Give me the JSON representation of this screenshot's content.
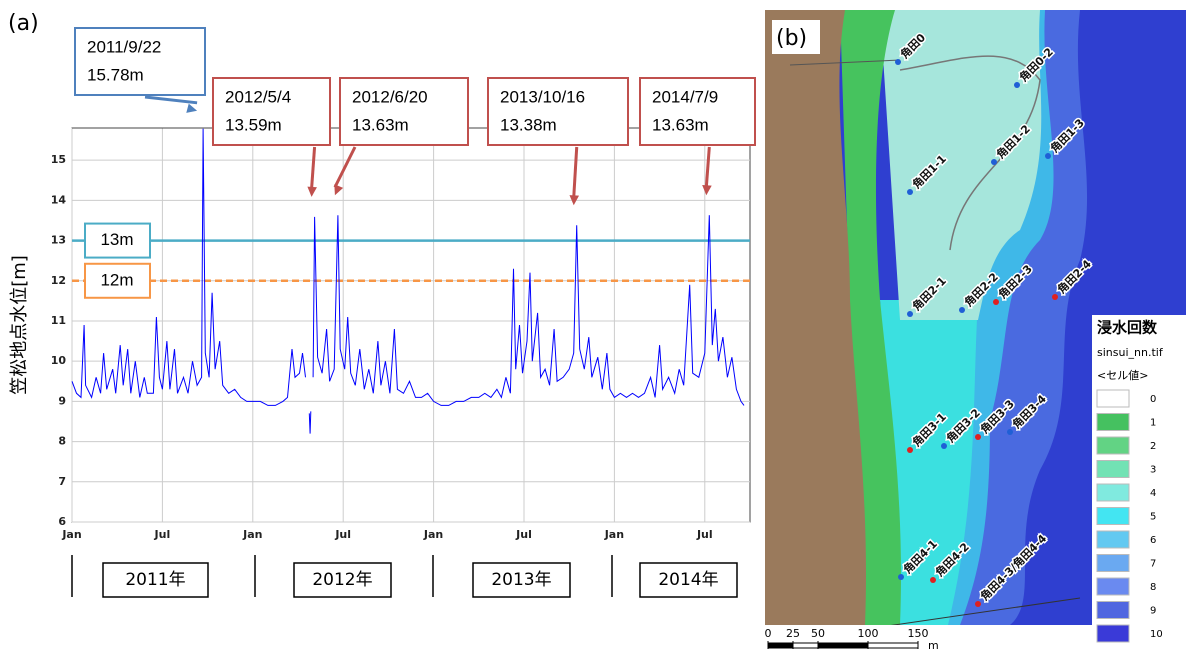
{
  "chart_data": {
    "type": "line",
    "panel_label": "(a)",
    "y_label": "笠松地点水位[m]",
    "xlim": [
      0,
      45
    ],
    "ylim": [
      6,
      15.8
    ],
    "xticks": [
      {
        "value": 0,
        "label": "Jan"
      },
      {
        "value": 6,
        "label": "Jul"
      },
      {
        "value": 12,
        "label": "Jan"
      },
      {
        "value": 18,
        "label": "Jul"
      },
      {
        "value": 24,
        "label": "Jan"
      },
      {
        "value": 30,
        "label": "Jul"
      },
      {
        "value": 36,
        "label": "Jan"
      },
      {
        "value": 42,
        "label": "Jul"
      }
    ],
    "yticks": [
      6,
      7,
      8,
      9,
      10,
      11,
      12,
      13,
      14,
      15
    ],
    "grid": true,
    "series": [
      {
        "color": "#0000ff",
        "x": [
          0,
          0.3,
          0.6,
          0.8,
          0.9,
          1.3,
          1.6,
          1.9,
          2.1,
          2.3,
          2.7,
          2.9,
          3.2,
          3.4,
          3.7,
          3.9,
          4.2,
          4.5,
          4.8,
          5.0,
          5.4,
          5.6,
          5.8,
          6.0,
          6.3,
          6.5,
          6.8,
          7.0,
          7.4,
          7.7,
          8.0,
          8.3,
          8.6,
          8.7,
          8.85,
          9.1,
          9.3,
          9.5,
          9.8,
          10.0,
          10.4,
          10.8,
          11.2,
          11.6,
          12.0,
          12.5,
          13.0,
          13.5,
          14.0,
          14.3,
          14.6,
          14.8,
          15.1,
          15.3,
          15.5,
          15.6,
          15.75,
          15.8,
          15.85,
          15.9,
          16.0,
          16.1,
          16.3,
          16.6,
          16.9,
          17.1,
          17.4,
          17.65,
          17.8,
          18.1,
          18.3,
          18.5,
          18.8,
          19.1,
          19.4,
          19.7,
          20.0,
          20.3,
          20.5,
          20.8,
          21.1,
          21.4,
          21.6,
          22.0,
          22.4,
          22.8,
          23.2,
          23.6,
          24.0,
          24.5,
          25.0,
          25.5,
          26.0,
          26.5,
          27.0,
          27.4,
          27.8,
          28.2,
          28.5,
          28.8,
          29.1,
          29.3,
          29.45,
          29.7,
          29.9,
          30.2,
          30.4,
          30.55,
          30.9,
          31.1,
          31.4,
          31.7,
          32.0,
          32.2,
          32.6,
          33.0,
          33.3,
          33.5,
          33.7,
          34.0,
          34.3,
          34.5,
          34.9,
          35.2,
          35.5,
          35.7,
          36.0,
          36.4,
          36.8,
          37.2,
          37.6,
          38.0,
          38.4,
          38.7,
          39.0,
          39.2,
          39.6,
          40.0,
          40.3,
          40.6,
          41.0,
          41.2,
          41.6,
          42.0,
          42.3,
          42.5,
          42.7,
          42.9,
          43.2,
          43.5,
          43.8,
          44.1,
          44.4,
          44.6
        ],
        "values": [
          9.5,
          9.2,
          9.1,
          10.9,
          9.4,
          9.1,
          9.6,
          9.2,
          10.2,
          9.3,
          9.8,
          9.2,
          10.4,
          9.4,
          10.3,
          9.2,
          10.0,
          9.1,
          9.6,
          9.2,
          9.2,
          11.1,
          9.6,
          9.3,
          10.5,
          9.3,
          10.3,
          9.2,
          9.6,
          9.2,
          10.0,
          9.4,
          9.6,
          15.78,
          10.2,
          9.6,
          11.7,
          9.8,
          10.5,
          9.4,
          9.2,
          9.3,
          9.1,
          9.0,
          9.0,
          9.0,
          8.9,
          8.9,
          9.0,
          9.1,
          10.3,
          9.6,
          9.7,
          10.2,
          9.6,
          null,
          8.7,
          8.2,
          8.75,
          null,
          9.6,
          13.59,
          10.1,
          9.7,
          10.8,
          9.5,
          9.8,
          13.63,
          10.3,
          9.8,
          11.1,
          9.7,
          9.4,
          10.3,
          9.3,
          9.8,
          9.2,
          10.5,
          9.4,
          10.0,
          9.2,
          10.8,
          9.3,
          9.2,
          9.5,
          9.1,
          9.1,
          9.2,
          9.0,
          8.9,
          8.9,
          9.0,
          9.0,
          9.1,
          9.1,
          9.2,
          9.1,
          9.3,
          9.1,
          9.6,
          9.2,
          12.3,
          9.8,
          10.9,
          9.7,
          10.5,
          12.2,
          10.0,
          11.2,
          9.6,
          9.8,
          9.4,
          10.8,
          9.5,
          9.6,
          9.8,
          10.2,
          13.38,
          10.3,
          9.8,
          10.6,
          9.6,
          10.1,
          9.3,
          10.2,
          9.3,
          9.1,
          9.2,
          9.1,
          9.2,
          9.1,
          9.2,
          9.6,
          9.1,
          10.4,
          9.3,
          9.6,
          9.2,
          9.8,
          9.4,
          11.9,
          9.7,
          9.6,
          10.2,
          13.63,
          10.4,
          11.3,
          10.0,
          10.6,
          9.6,
          10.1,
          9.3,
          9.0,
          8.9
        ]
      }
    ],
    "hlines": [
      {
        "value": 13,
        "label": "13m",
        "color": "#4bacc6",
        "style": "solid"
      },
      {
        "value": 12,
        "label": "12m",
        "color": "#f79646",
        "style": "dashed"
      }
    ],
    "annotations": [
      {
        "date": "2011/9/22",
        "label": "15.78m",
        "x": 8.7,
        "value": 15.78,
        "color": "#4f81bd"
      },
      {
        "date": "2012/5/4",
        "label": "13.59m",
        "x": 16.1,
        "value": 13.59,
        "color": "#c0504d"
      },
      {
        "date": "2012/6/20",
        "label": "13.63m",
        "x": 17.65,
        "value": 13.63,
        "color": "#c0504d"
      },
      {
        "date": "2013/10/16",
        "label": "13.38m",
        "x": 33.5,
        "value": 13.38,
        "color": "#c0504d"
      },
      {
        "date": "2014/7/9",
        "label": "13.63m",
        "x": 42.3,
        "value": 13.63,
        "color": "#c0504d"
      }
    ],
    "periods": [
      "2011年",
      "2012年",
      "2013年",
      "2014年"
    ]
  },
  "map": {
    "label": "(b)",
    "stations": [
      {
        "name": "角田0",
        "color": "#1f5fd6"
      },
      {
        "name": "角田0-2",
        "color": "#1f5fd6"
      },
      {
        "name": "角田1-1",
        "color": "#1f5fd6"
      },
      {
        "name": "角田1-2",
        "color": "#1f5fd6"
      },
      {
        "name": "角田1-3",
        "color": "#1f5fd6"
      },
      {
        "name": "角田2-1",
        "color": "#1f5fd6"
      },
      {
        "name": "角田2-2",
        "color": "#1f5fd6"
      },
      {
        "name": "角田2-3",
        "color": "#e02020"
      },
      {
        "name": "角田2-4",
        "color": "#e02020"
      },
      {
        "name": "角田3-1",
        "color": "#e02020"
      },
      {
        "name": "角田3-2",
        "color": "#1f5fd6"
      },
      {
        "name": "角田3-3",
        "color": "#e02020"
      },
      {
        "name": "角田3-4",
        "color": "#1f5fd6"
      },
      {
        "name": "角田4-1",
        "color": "#1f5fd6"
      },
      {
        "name": "角田4-2",
        "color": "#e02020"
      },
      {
        "name": "角田4-3/角田4-4",
        "color": "#e02020"
      }
    ],
    "legend": {
      "title": "浸水回数",
      "file": "sinsui_nn.tif",
      "subtitle": "<セル値>",
      "items": [
        {
          "label": 0,
          "color": "#ffffff"
        },
        {
          "label": 1,
          "color": "#45c160"
        },
        {
          "label": 2,
          "color": "#62d384"
        },
        {
          "label": 3,
          "color": "#72e2b4"
        },
        {
          "label": 4,
          "color": "#80eadf"
        },
        {
          "label": 5,
          "color": "#43e5f2"
        },
        {
          "label": 6,
          "color": "#62c9f1"
        },
        {
          "label": 7,
          "color": "#6aa9f1"
        },
        {
          "label": 8,
          "color": "#6a8af0"
        },
        {
          "label": 9,
          "color": "#5066e0"
        },
        {
          "label": 10,
          "color": "#3a3ad8"
        }
      ]
    },
    "scale": {
      "ticks": [
        0,
        25,
        50,
        100,
        150
      ],
      "unit": "m"
    }
  }
}
